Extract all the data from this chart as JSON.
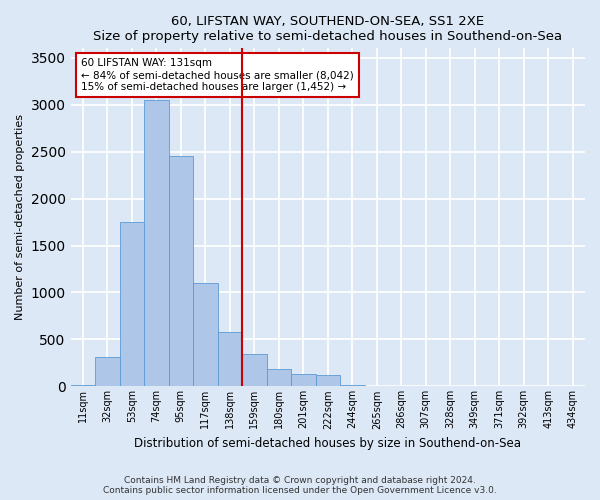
{
  "title": "60, LIFSTAN WAY, SOUTHEND-ON-SEA, SS1 2XE",
  "subtitle": "Size of property relative to semi-detached houses in Southend-on-Sea",
  "xlabel": "Distribution of semi-detached houses by size in Southend-on-Sea",
  "ylabel": "Number of semi-detached properties",
  "footer_line1": "Contains HM Land Registry data © Crown copyright and database right 2024.",
  "footer_line2": "Contains public sector information licensed under the Open Government Licence v3.0.",
  "annotation_line1": "60 LIFSTAN WAY: 131sqm",
  "annotation_line2": "← 84% of semi-detached houses are smaller (8,042)",
  "annotation_line3": "15% of semi-detached houses are larger (1,452) →",
  "bar_labels": [
    "11sqm",
    "32sqm",
    "53sqm",
    "74sqm",
    "95sqm",
    "117sqm",
    "138sqm",
    "159sqm",
    "180sqm",
    "201sqm",
    "222sqm",
    "244sqm",
    "265sqm",
    "286sqm",
    "307sqm",
    "328sqm",
    "349sqm",
    "371sqm",
    "392sqm",
    "413sqm",
    "434sqm"
  ],
  "bar_heights": [
    20,
    310,
    1750,
    3050,
    2450,
    1100,
    580,
    340,
    190,
    130,
    120,
    10,
    0,
    0,
    0,
    0,
    0,
    0,
    0,
    0,
    0
  ],
  "bar_color": "#aec6e8",
  "bar_edgecolor": "#5b9bd5",
  "vline_color": "#cc0000",
  "vline_index": 6,
  "ylim": [
    0,
    3600
  ],
  "yticks": [
    0,
    500,
    1000,
    1500,
    2000,
    2500,
    3000,
    3500
  ],
  "bg_color": "#dce8f5",
  "grid_color": "#ffffff",
  "annotation_box_color": "#ffffff",
  "annotation_box_edgecolor": "#cc0000"
}
